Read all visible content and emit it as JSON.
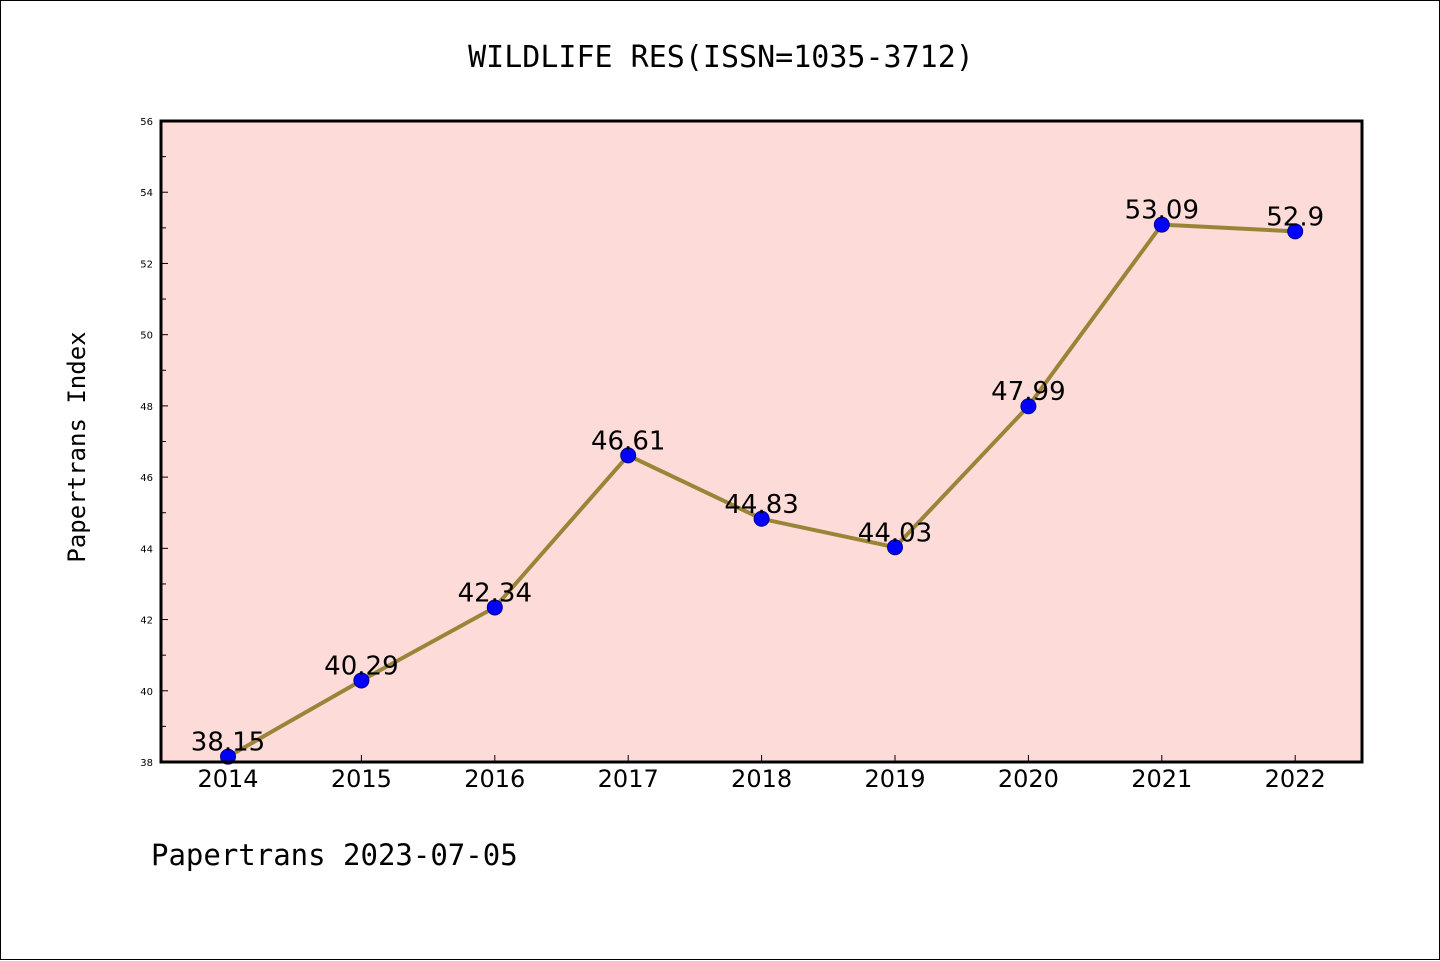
{
  "title": "WILDLIFE RES(ISSN=1035-3712)",
  "footer": "Papertrans 2023-07-05",
  "chart_data": {
    "type": "line",
    "title": "WILDLIFE RES(ISSN=1035-3712)",
    "xlabel": "",
    "ylabel": "Papertrans Index",
    "categories": [
      "2014",
      "2015",
      "2016",
      "2017",
      "2018",
      "2019",
      "2020",
      "2021",
      "2022"
    ],
    "values": [
      38.15,
      40.29,
      42.34,
      46.61,
      44.83,
      44.03,
      47.99,
      53.09,
      52.9
    ],
    "data_labels": [
      "38.15",
      "40.29",
      "42.34",
      "46.61",
      "44.83",
      "44.03",
      "47.99",
      "53.09",
      "52.9"
    ],
    "ylim": [
      38,
      56
    ],
    "yticks": [
      "38",
      "40",
      "42",
      "44",
      "46",
      "48",
      "50",
      "52",
      "54",
      "56"
    ],
    "grid": false,
    "legend": "none",
    "colors": {
      "plot_background": "#fddbd8",
      "line": "#9a8438",
      "marker": "#0000ff",
      "marker_edge": "#00008b"
    }
  }
}
